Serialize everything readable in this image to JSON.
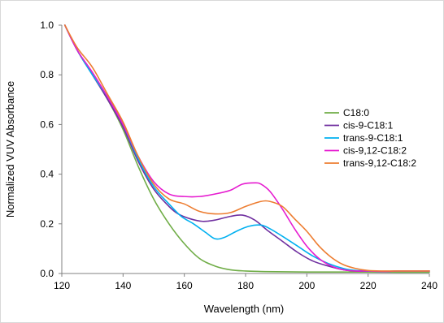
{
  "chart_data": {
    "type": "line",
    "title": "",
    "xlabel": "Wavelength (nm)",
    "ylabel": "Normalized VUV Absorbance",
    "xlim": [
      120,
      240
    ],
    "ylim": [
      0.0,
      1.0
    ],
    "x_ticks": [
      120,
      140,
      160,
      180,
      200,
      220,
      240
    ],
    "x_tick_labels": [
      "120",
      "140",
      "160",
      "180",
      "200",
      "220",
      "240"
    ],
    "y_ticks": [
      0.0,
      0.2,
      0.4,
      0.6,
      0.8,
      1.0
    ],
    "y_tick_labels": [
      "0.0",
      "0.2",
      "0.4",
      "0.6",
      "0.8",
      "1.0"
    ],
    "grid": false,
    "legend_position": "right",
    "series": [
      {
        "name": "C18:0",
        "color": "#70ad47",
        "x": [
          121,
          125,
          130,
          135,
          140,
          145,
          150,
          155,
          160,
          165,
          170,
          175,
          180,
          185,
          190,
          200,
          210,
          220,
          230,
          240
        ],
        "y": [
          1.0,
          0.9,
          0.8,
          0.7,
          0.58,
          0.43,
          0.3,
          0.2,
          0.12,
          0.06,
          0.03,
          0.015,
          0.01,
          0.008,
          0.007,
          0.006,
          0.006,
          0.006,
          0.005,
          0.005
        ]
      },
      {
        "name": "cis-9-C18:1",
        "color": "#7030a0",
        "x": [
          121,
          125,
          130,
          135,
          140,
          145,
          150,
          155,
          158,
          162,
          166,
          170,
          175,
          179,
          183,
          187,
          192,
          197,
          202,
          207,
          212,
          216,
          220,
          225,
          230,
          240
        ],
        "y": [
          1.0,
          0.9,
          0.8,
          0.7,
          0.59,
          0.45,
          0.34,
          0.27,
          0.24,
          0.22,
          0.21,
          0.215,
          0.23,
          0.235,
          0.215,
          0.175,
          0.13,
          0.085,
          0.05,
          0.03,
          0.015,
          0.01,
          0.01,
          0.008,
          0.01,
          0.01
        ]
      },
      {
        "name": "trans-9-C18:1",
        "color": "#00b0f0",
        "x": [
          121,
          125,
          130,
          135,
          140,
          145,
          150,
          155,
          159,
          163,
          167,
          170,
          173,
          177,
          181,
          185,
          188,
          192,
          197,
          202,
          207,
          212,
          216,
          220,
          225,
          230,
          240
        ],
        "y": [
          1.0,
          0.9,
          0.8,
          0.71,
          0.6,
          0.46,
          0.35,
          0.28,
          0.23,
          0.2,
          0.165,
          0.14,
          0.145,
          0.17,
          0.19,
          0.195,
          0.18,
          0.15,
          0.11,
          0.07,
          0.04,
          0.02,
          0.012,
          0.01,
          0.008,
          0.01,
          0.01
        ]
      },
      {
        "name": "cis-9,12-C18:2",
        "color": "#e61cd0",
        "x": [
          121,
          125,
          130,
          135,
          140,
          145,
          150,
          155,
          160,
          165,
          170,
          175,
          179,
          183,
          185,
          188,
          192,
          196,
          200,
          204,
          208,
          212,
          216,
          220,
          225,
          230,
          240
        ],
        "y": [
          1.0,
          0.9,
          0.81,
          0.71,
          0.6,
          0.47,
          0.37,
          0.32,
          0.31,
          0.31,
          0.32,
          0.335,
          0.36,
          0.365,
          0.36,
          0.33,
          0.26,
          0.18,
          0.11,
          0.06,
          0.03,
          0.015,
          0.01,
          0.01,
          0.008,
          0.01,
          0.01
        ]
      },
      {
        "name": "trans-9,12-C18:2",
        "color": "#ed7d31",
        "x": [
          121,
          125,
          130,
          135,
          140,
          145,
          150,
          155,
          160,
          165,
          170,
          175,
          180,
          185,
          188,
          192,
          196,
          200,
          204,
          208,
          212,
          216,
          220,
          225,
          230,
          240
        ],
        "y": [
          1.0,
          0.91,
          0.83,
          0.72,
          0.61,
          0.47,
          0.36,
          0.3,
          0.28,
          0.25,
          0.24,
          0.245,
          0.27,
          0.29,
          0.29,
          0.27,
          0.22,
          0.17,
          0.11,
          0.065,
          0.035,
          0.02,
          0.012,
          0.01,
          0.01,
          0.01
        ]
      }
    ]
  }
}
